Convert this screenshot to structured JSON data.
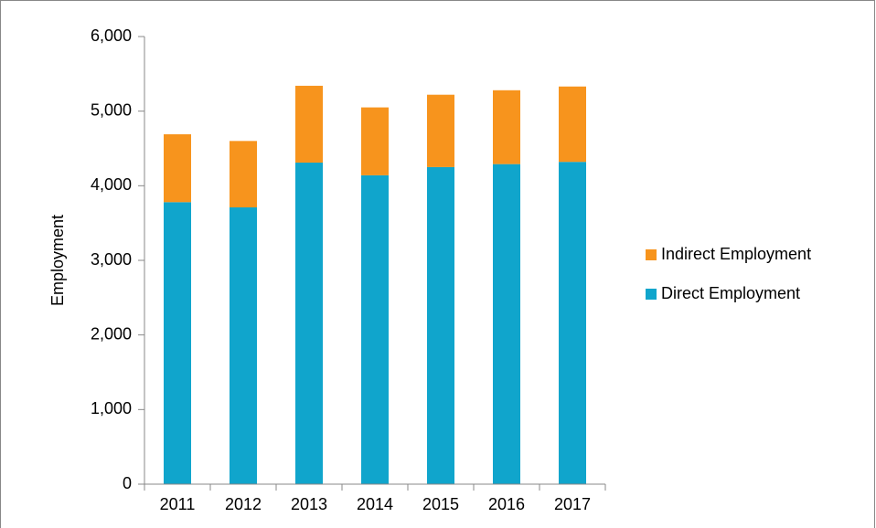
{
  "chart_data": {
    "type": "stacked_bar",
    "y_label": "Employment",
    "categories": [
      "2011",
      "2012",
      "2013",
      "2014",
      "2015",
      "2016",
      "2017"
    ],
    "series": [
      {
        "name": "Direct Employment",
        "color": "#10a5cc",
        "values": [
          3780,
          3710,
          4310,
          4140,
          4250,
          4290,
          4320
        ]
      },
      {
        "name": "Indirect Employment",
        "color": "#f7941d",
        "values": [
          910,
          890,
          1030,
          910,
          970,
          990,
          1010
        ]
      }
    ],
    "ylim": [
      0,
      6000
    ],
    "yticks": [
      0,
      {
        "value": 1000,
        "label": "1,000"
      },
      {
        "value": 2000,
        "label": "2,000"
      },
      {
        "value": 3000,
        "label": "3,000"
      },
      {
        "value": 4000,
        "label": "4,000"
      },
      {
        "value": 5000,
        "label": "5,000"
      },
      {
        "value": 6000,
        "label": "6,000"
      }
    ],
    "grid": false,
    "legend": "right"
  }
}
